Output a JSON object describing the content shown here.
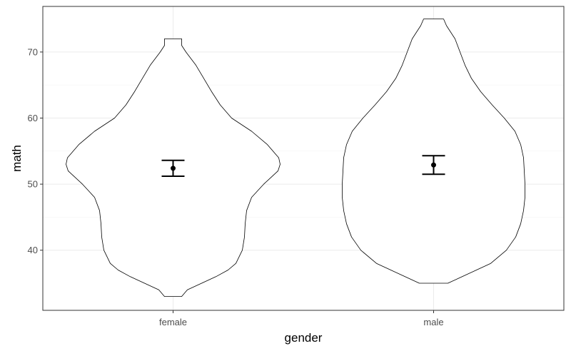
{
  "chart_data": {
    "type": "violin",
    "title": "",
    "xlabel": "gender",
    "ylabel": "math",
    "categories": [
      "female",
      "male"
    ],
    "ylim": [
      30.9,
      76.9
    ],
    "yticks": [
      40,
      50,
      60,
      70
    ],
    "grid": true,
    "legend": "none",
    "colors": {
      "panel_border": "#333333",
      "grid": "#ebebeb",
      "violin_outline": "#000000",
      "point": "#000000"
    },
    "summary": [
      {
        "category": "female",
        "mean": 52.4,
        "ci_low": 51.2,
        "ci_high": 53.6,
        "min": 33,
        "max": 72
      },
      {
        "category": "male",
        "mean": 52.9,
        "ci_low": 51.5,
        "ci_high": 54.3,
        "min": 35,
        "max": 75
      }
    ],
    "density_profile": [
      {
        "category": "female",
        "points": [
          [
            33,
            0.12
          ],
          [
            34,
            0.2
          ],
          [
            35,
            0.4
          ],
          [
            36,
            0.6
          ],
          [
            37,
            0.77
          ],
          [
            38,
            0.88
          ],
          [
            40,
            0.97
          ],
          [
            42,
            1.0
          ],
          [
            44,
            1.01
          ],
          [
            46,
            1.03
          ],
          [
            48,
            1.1
          ],
          [
            50,
            1.27
          ],
          [
            52,
            1.47
          ],
          [
            53,
            1.5
          ],
          [
            54,
            1.48
          ],
          [
            56,
            1.32
          ],
          [
            58,
            1.1
          ],
          [
            60,
            0.82
          ],
          [
            62,
            0.66
          ],
          [
            64,
            0.54
          ],
          [
            66,
            0.43
          ],
          [
            68,
            0.32
          ],
          [
            70,
            0.18
          ],
          [
            71,
            0.12
          ],
          [
            72,
            0.12
          ]
        ]
      },
      {
        "category": "male",
        "points": [
          [
            35,
            0.2
          ],
          [
            36,
            0.4
          ],
          [
            37,
            0.6
          ],
          [
            38,
            0.8
          ],
          [
            40,
            1.02
          ],
          [
            42,
            1.15
          ],
          [
            44,
            1.22
          ],
          [
            46,
            1.26
          ],
          [
            48,
            1.28
          ],
          [
            50,
            1.28
          ],
          [
            52,
            1.27
          ],
          [
            54,
            1.26
          ],
          [
            56,
            1.22
          ],
          [
            58,
            1.14
          ],
          [
            60,
            0.99
          ],
          [
            62,
            0.82
          ],
          [
            64,
            0.66
          ],
          [
            66,
            0.53
          ],
          [
            68,
            0.44
          ],
          [
            70,
            0.37
          ],
          [
            72,
            0.3
          ],
          [
            74,
            0.18
          ],
          [
            75,
            0.14
          ]
        ]
      }
    ]
  }
}
